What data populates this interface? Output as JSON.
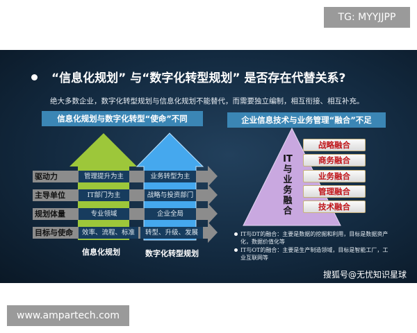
{
  "overlay": {
    "tg": "TG: MYYJJPP",
    "site": "www.ampartech.com"
  },
  "slide": {
    "title": "“信息化规划” 与“数字化转型规划” 是否存在代替关系?",
    "subtitle": "绝大多数企业，数字化转型规划与信息化规划不能替代，而需要独立编制，相互衔接、相互补充。",
    "left": {
      "header": "信息化规划与数字化转型“使命”不同",
      "rows": [
        {
          "label": "驱动力",
          "info": "管理提升为主",
          "digital": "业务转型为主"
        },
        {
          "label": "主导单位",
          "info": "IT部门为主",
          "digital": "战略与投资部门"
        },
        {
          "label": "规划体量",
          "info": "专业领域",
          "digital": "企业全局"
        },
        {
          "label": "目标与使命",
          "info": "效率、流程、标准",
          "digital": "转型、升级、发展"
        }
      ],
      "col_info": "信息化规划",
      "col_digital": "数字化转型规划",
      "colors": {
        "green": "#9dc73a",
        "blue": "#45a8ee"
      }
    },
    "right": {
      "header": "企业信息技术与业务管理“融合”不足",
      "pyramid_text": [
        "IT",
        "与",
        "业",
        "务",
        "融",
        "合"
      ],
      "items": [
        "战略融合",
        "商务融合",
        "业务融合",
        "管理融合",
        "技术融合"
      ],
      "bullets": [
        "IT与DT的融合：主要是数据的挖掘和利用，目标是数据资产化，数据价值化等",
        "IT与OT的融合：主要是生产制造领域，目标是智能工厂，工业互联网等"
      ],
      "colors": {
        "pyramid": "#c9a8e0",
        "item_text": "#c0161b"
      }
    },
    "watermark": "搜狐号@无忧知识星球"
  }
}
